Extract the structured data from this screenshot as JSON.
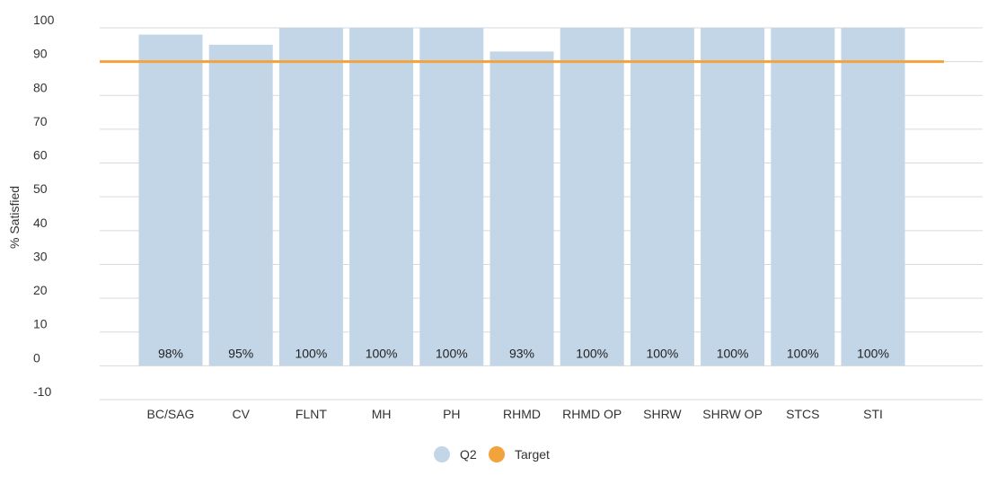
{
  "chart_data": {
    "type": "bar",
    "ylabel": "% Satisfied",
    "ylim": [
      -10,
      100
    ],
    "yticks": [
      100,
      90,
      80,
      70,
      60,
      50,
      40,
      30,
      20,
      10,
      0,
      -10
    ],
    "categories": [
      "BC/SAG",
      "CV",
      "FLNT",
      "MH",
      "PH",
      "RHMD",
      "RHMD OP",
      "SHRW",
      "SHRW OP",
      "STCS",
      "STI"
    ],
    "series": [
      {
        "name": "Q2",
        "type": "bar",
        "values": [
          98,
          95,
          100,
          100,
          100,
          93,
          100,
          100,
          100,
          100,
          100
        ],
        "labels": [
          "98%",
          "95%",
          "100%",
          "100%",
          "100%",
          "93%",
          "100%",
          "100%",
          "100%",
          "100%",
          "100%"
        ],
        "color": "#c3d6e7"
      },
      {
        "name": "Target",
        "type": "line",
        "value": 90,
        "color": "#f2a33c"
      }
    ],
    "grid": true,
    "legend_position": "bottom-center"
  }
}
